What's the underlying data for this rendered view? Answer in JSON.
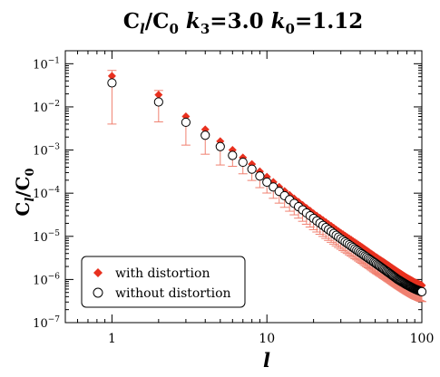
{
  "chart_data": {
    "type": "scatter",
    "title": {
      "parts": [
        "C",
        "l",
        "/C",
        "0",
        " ",
        "k",
        "3",
        "=3.0 ",
        "k",
        "0",
        "=1.12"
      ]
    },
    "xlabel": "l",
    "ylabel": {
      "parts": [
        "C",
        "l",
        "/C",
        "0"
      ]
    },
    "xscale": "log",
    "yscale": "log",
    "xlim": [
      0.5,
      100
    ],
    "ylim": [
      1e-07,
      0.2
    ],
    "x_ticks": [
      {
        "value": 1,
        "label": "1"
      },
      {
        "value": 10,
        "label": "10"
      },
      {
        "value": 100,
        "label": "100"
      }
    ],
    "y_ticks": [
      {
        "value": 0.1,
        "base": "10",
        "exp": "−1"
      },
      {
        "value": 0.01,
        "base": "10",
        "exp": "−2"
      },
      {
        "value": 0.001,
        "base": "10",
        "exp": "−3"
      },
      {
        "value": 0.0001,
        "base": "10",
        "exp": "−4"
      },
      {
        "value": 1e-05,
        "base": "10",
        "exp": "−5"
      },
      {
        "value": 1e-06,
        "base": "10",
        "exp": "−6"
      },
      {
        "value": 1e-07,
        "base": "10",
        "exp": "−7"
      }
    ],
    "legend_position": "bottom-left",
    "series": [
      {
        "name": "with distortion",
        "marker": "diamond",
        "color": "#e8301e",
        "l_range": [
          1,
          100
        ],
        "anchor_points": [
          {
            "l": 1,
            "value": 0.052,
            "err_low": 0.004,
            "err_high": 0.07
          },
          {
            "l": 2,
            "value": 0.019,
            "err_low": 0.0045,
            "err_high": 0.024
          },
          {
            "l": 3,
            "value": 0.006,
            "err_low": 0.0013
          },
          {
            "l": 4,
            "value": 0.003,
            "err_low": 0.0008
          },
          {
            "l": 5,
            "value": 0.0016,
            "err_low": 0.00045
          },
          {
            "l": 6,
            "value": 0.001
          },
          {
            "l": 7,
            "value": 0.00067
          },
          {
            "l": 8,
            "value": 0.00047
          },
          {
            "l": 9,
            "value": 0.00032
          },
          {
            "l": 10,
            "value": 0.00024
          },
          {
            "l": 12,
            "value": 0.00014
          },
          {
            "l": 15,
            "value": 7.5e-05
          },
          {
            "l": 20,
            "value": 3.4e-05
          },
          {
            "l": 30,
            "value": 1.2e-05
          },
          {
            "l": 40,
            "value": 6e-06
          },
          {
            "l": 50,
            "value": 3.4e-06
          },
          {
            "l": 60,
            "value": 2.2e-06
          },
          {
            "l": 70,
            "value": 1.5e-06
          },
          {
            "l": 80,
            "value": 1.1e-06
          },
          {
            "l": 90,
            "value": 8.6e-07
          },
          {
            "l": 100,
            "value": 7.3e-07
          }
        ]
      },
      {
        "name": "without distortion",
        "marker": "open-circle",
        "color": "#000000",
        "l_range": [
          1,
          100
        ],
        "anchor_points": [
          {
            "l": 1,
            "value": 0.036
          },
          {
            "l": 2,
            "value": 0.013
          },
          {
            "l": 3,
            "value": 0.0044
          },
          {
            "l": 4,
            "value": 0.0022
          },
          {
            "l": 5,
            "value": 0.0012
          },
          {
            "l": 6,
            "value": 0.00075
          },
          {
            "l": 7,
            "value": 0.00052
          },
          {
            "l": 8,
            "value": 0.00036
          },
          {
            "l": 9,
            "value": 0.00025
          },
          {
            "l": 10,
            "value": 0.00018
          },
          {
            "l": 12,
            "value": 0.00011
          },
          {
            "l": 15,
            "value": 5.8e-05
          },
          {
            "l": 20,
            "value": 2.6e-05
          },
          {
            "l": 30,
            "value": 8.8e-06
          },
          {
            "l": 40,
            "value": 4.2e-06
          },
          {
            "l": 50,
            "value": 2.4e-06
          },
          {
            "l": 60,
            "value": 1.5e-06
          },
          {
            "l": 70,
            "value": 1e-06
          },
          {
            "l": 80,
            "value": 7.5e-07
          },
          {
            "l": 90,
            "value": 6e-07
          },
          {
            "l": 100,
            "value": 5.2e-07
          }
        ]
      }
    ],
    "error_bars": {
      "series": "with distortion",
      "color": "#f08070",
      "lower_fraction_approx": 0.42
    }
  }
}
